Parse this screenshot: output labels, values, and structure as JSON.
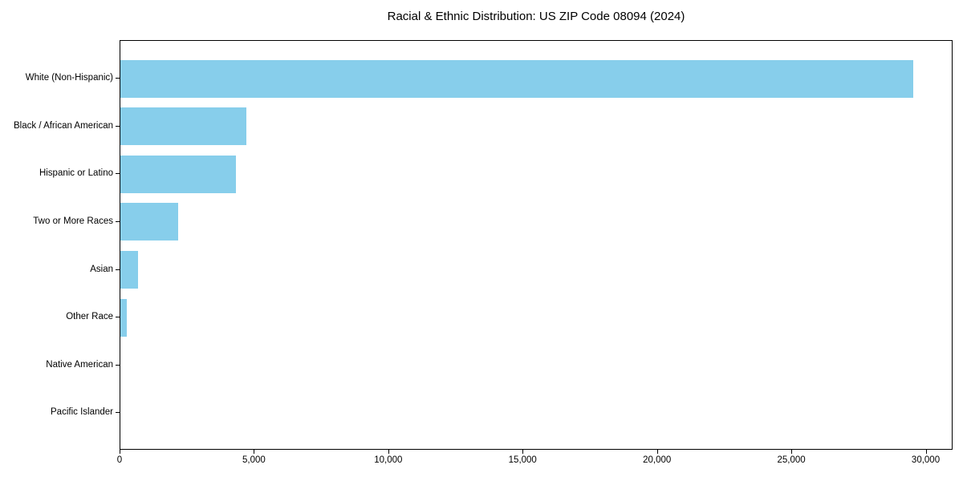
{
  "title": "Racial & Ethnic Distribution: US ZIP Code 08094 (2024)",
  "chart_data": {
    "type": "bar",
    "orientation": "horizontal",
    "title": "Racial & Ethnic Distribution: US ZIP Code 08094 (2024)",
    "xlabel": "",
    "ylabel": "",
    "categories": [
      "White (Non-Hispanic)",
      "Black / African American",
      "Hispanic or Latino",
      "Two or More Races",
      "Asian",
      "Other Race",
      "Native American",
      "Pacific Islander"
    ],
    "values": [
      29500,
      4700,
      4300,
      2150,
      660,
      240,
      0,
      0
    ],
    "xlim": [
      0,
      31000
    ],
    "x_ticks": [
      0,
      5000,
      10000,
      15000,
      20000,
      25000,
      30000
    ],
    "x_tick_labels": [
      "0",
      "5,000",
      "10,000",
      "15,000",
      "20,000",
      "25,000",
      "30,000"
    ],
    "bar_color": "#87CEEB",
    "grid": false,
    "legend": false
  }
}
